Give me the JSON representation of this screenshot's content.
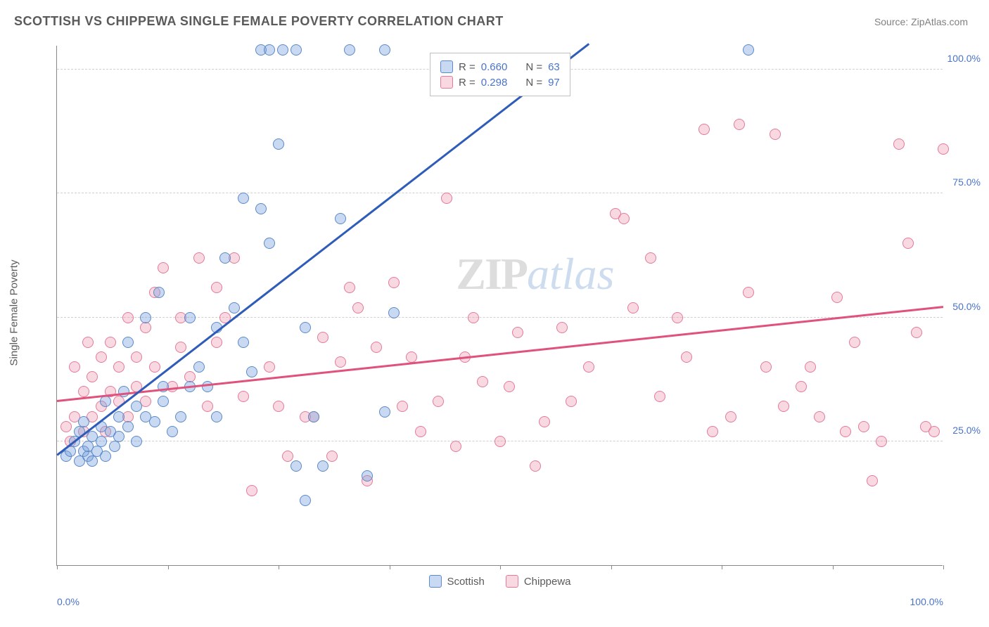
{
  "header": {
    "title": "SCOTTISH VS CHIPPEWA SINGLE FEMALE POVERTY CORRELATION CHART",
    "source_label": "Source: ",
    "source_value": "ZipAtlas.com"
  },
  "chart": {
    "type": "scatter",
    "y_axis_title": "Single Female Poverty",
    "xlim": [
      0,
      100
    ],
    "ylim": [
      0,
      105
    ],
    "y_gridlines": [
      25,
      50,
      75,
      100
    ],
    "y_tick_labels": [
      "25.0%",
      "50.0%",
      "75.0%",
      "100.0%"
    ],
    "x_ticks": [
      0,
      12.5,
      25,
      37.5,
      50,
      62.5,
      75,
      87.5,
      100
    ],
    "x_tick_labels": {
      "0": "0.0%",
      "100": "100.0%"
    },
    "background_color": "#ffffff",
    "grid_color": "#d0d0d0",
    "axis_color": "#888888",
    "tick_label_color": "#4a74c9",
    "marker_size": 16,
    "series": {
      "scottish": {
        "label": "Scottish",
        "color_fill": "rgba(120,160,220,0.4)",
        "color_stroke": "#5b8ac9",
        "trend_color": "#2e5cb8",
        "R": "0.660",
        "N": "63",
        "trend": {
          "x1": 0,
          "y1": 22,
          "x2": 60,
          "y2": 105
        },
        "points": [
          [
            1,
            22
          ],
          [
            1.5,
            23
          ],
          [
            2,
            25
          ],
          [
            2.5,
            21
          ],
          [
            2.5,
            27
          ],
          [
            3,
            23
          ],
          [
            3,
            29
          ],
          [
            3.5,
            22
          ],
          [
            3.5,
            24
          ],
          [
            4,
            21
          ],
          [
            4,
            26
          ],
          [
            4.5,
            23
          ],
          [
            5,
            25
          ],
          [
            5,
            28
          ],
          [
            5.5,
            22
          ],
          [
            5.5,
            33
          ],
          [
            6,
            27
          ],
          [
            6.5,
            24
          ],
          [
            7,
            26
          ],
          [
            7,
            30
          ],
          [
            7.5,
            35
          ],
          [
            8,
            28
          ],
          [
            8,
            45
          ],
          [
            9,
            32
          ],
          [
            9,
            25
          ],
          [
            10,
            30
          ],
          [
            10,
            50
          ],
          [
            11,
            29
          ],
          [
            11.5,
            55
          ],
          [
            12,
            33
          ],
          [
            12,
            36
          ],
          [
            13,
            27
          ],
          [
            14,
            30
          ],
          [
            15,
            36
          ],
          [
            15,
            50
          ],
          [
            16,
            40
          ],
          [
            17,
            36
          ],
          [
            18,
            30
          ],
          [
            18,
            48
          ],
          [
            19,
            62
          ],
          [
            20,
            52
          ],
          [
            21,
            45
          ],
          [
            21,
            74
          ],
          [
            22,
            39
          ],
          [
            23,
            72
          ],
          [
            23,
            104
          ],
          [
            24,
            65
          ],
          [
            24,
            104
          ],
          [
            25,
            85
          ],
          [
            25.5,
            104
          ],
          [
            27,
            104
          ],
          [
            27,
            20
          ],
          [
            28,
            48
          ],
          [
            28,
            13
          ],
          [
            29,
            30
          ],
          [
            30,
            20
          ],
          [
            32,
            70
          ],
          [
            33,
            104
          ],
          [
            35,
            18
          ],
          [
            37,
            104
          ],
          [
            37,
            31
          ],
          [
            38,
            51
          ],
          [
            78,
            104
          ]
        ]
      },
      "chippewa": {
        "label": "Chippewa",
        "color_fill": "rgba(240,160,180,0.4)",
        "color_stroke": "#e47a9a",
        "trend_color": "#e0517b",
        "R": "0.298",
        "N": "97",
        "trend": {
          "x1": 0,
          "y1": 33,
          "x2": 100,
          "y2": 52
        },
        "points": [
          [
            1,
            28
          ],
          [
            1.5,
            25
          ],
          [
            2,
            30
          ],
          [
            2,
            40
          ],
          [
            3,
            27
          ],
          [
            3,
            35
          ],
          [
            3.5,
            45
          ],
          [
            4,
            30
          ],
          [
            4,
            38
          ],
          [
            5,
            32
          ],
          [
            5,
            42
          ],
          [
            5.5,
            27
          ],
          [
            6,
            35
          ],
          [
            6,
            45
          ],
          [
            7,
            33
          ],
          [
            7,
            40
          ],
          [
            8,
            30
          ],
          [
            8,
            50
          ],
          [
            9,
            36
          ],
          [
            9,
            42
          ],
          [
            10,
            33
          ],
          [
            10,
            48
          ],
          [
            11,
            40
          ],
          [
            11,
            55
          ],
          [
            12,
            60
          ],
          [
            13,
            36
          ],
          [
            14,
            44
          ],
          [
            14,
            50
          ],
          [
            15,
            38
          ],
          [
            16,
            62
          ],
          [
            17,
            32
          ],
          [
            18,
            45
          ],
          [
            18,
            56
          ],
          [
            19,
            50
          ],
          [
            20,
            62
          ],
          [
            21,
            34
          ],
          [
            22,
            15
          ],
          [
            24,
            40
          ],
          [
            25,
            32
          ],
          [
            26,
            22
          ],
          [
            28,
            30
          ],
          [
            29,
            30
          ],
          [
            30,
            46
          ],
          [
            31,
            22
          ],
          [
            32,
            41
          ],
          [
            33,
            56
          ],
          [
            34,
            52
          ],
          [
            35,
            17
          ],
          [
            36,
            44
          ],
          [
            38,
            57
          ],
          [
            39,
            32
          ],
          [
            40,
            42
          ],
          [
            41,
            27
          ],
          [
            43,
            33
          ],
          [
            44,
            74
          ],
          [
            45,
            24
          ],
          [
            46,
            42
          ],
          [
            47,
            50
          ],
          [
            48,
            37
          ],
          [
            50,
            25
          ],
          [
            51,
            36
          ],
          [
            52,
            47
          ],
          [
            54,
            20
          ],
          [
            55,
            29
          ],
          [
            57,
            48
          ],
          [
            58,
            33
          ],
          [
            60,
            40
          ],
          [
            63,
            71
          ],
          [
            64,
            70
          ],
          [
            65,
            52
          ],
          [
            67,
            62
          ],
          [
            68,
            34
          ],
          [
            70,
            50
          ],
          [
            71,
            42
          ],
          [
            73,
            88
          ],
          [
            74,
            27
          ],
          [
            76,
            30
          ],
          [
            77,
            89
          ],
          [
            78,
            55
          ],
          [
            80,
            40
          ],
          [
            81,
            87
          ],
          [
            82,
            32
          ],
          [
            84,
            36
          ],
          [
            85,
            40
          ],
          [
            86,
            30
          ],
          [
            88,
            54
          ],
          [
            89,
            27
          ],
          [
            90,
            45
          ],
          [
            91,
            28
          ],
          [
            92,
            17
          ],
          [
            93,
            25
          ],
          [
            95,
            85
          ],
          [
            96,
            65
          ],
          [
            97,
            47
          ],
          [
            98,
            28
          ],
          [
            99,
            27
          ],
          [
            100,
            84
          ]
        ]
      }
    },
    "legend": {
      "r_prefix": "R = ",
      "n_prefix": "N = "
    },
    "watermark": {
      "zip": "ZIP",
      "atlas": "atlas"
    }
  }
}
